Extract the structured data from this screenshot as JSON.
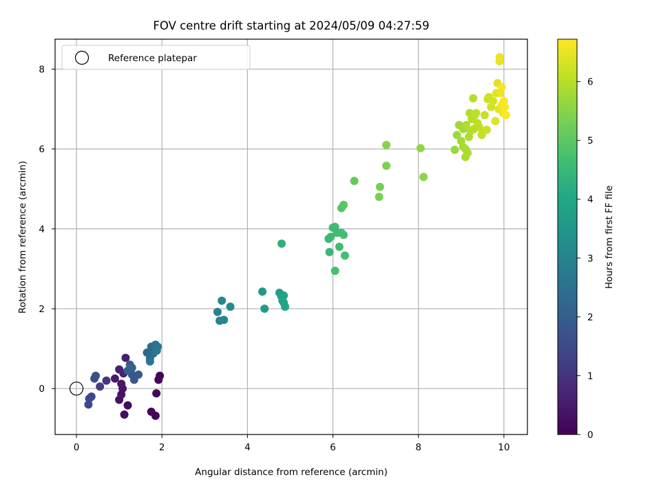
{
  "chart_data": {
    "type": "scatter",
    "title": "FOV centre drift starting at 2024/05/09 04:27:59",
    "xlabel": "Angular distance from reference (arcmin)",
    "ylabel": "Rotation from reference (arcmin)",
    "xlim": [
      -0.5,
      10.55
    ],
    "ylim": [
      -1.15,
      8.75
    ],
    "x_ticks": [
      0,
      2,
      4,
      6,
      8,
      10
    ],
    "x_tick_labels": [
      "0",
      "2",
      "4",
      "6",
      "8",
      "10"
    ],
    "y_ticks": [
      0,
      2,
      4,
      6,
      8
    ],
    "y_tick_labels": [
      "0",
      "2",
      "4",
      "6",
      "8"
    ],
    "grid": true,
    "legend": {
      "location": "upper-left",
      "entries": [
        "Reference platepar"
      ]
    },
    "colorbar": {
      "label": "Hours from first FF file",
      "colormap": "viridis",
      "range": [
        0,
        6.72
      ],
      "ticks": [
        0,
        1,
        2,
        3,
        4,
        5,
        6
      ],
      "tick_labels": [
        "0",
        "1",
        "2",
        "3",
        "4",
        "5",
        "6"
      ]
    },
    "reference": {
      "x": 0,
      "y": 0
    },
    "points": [
      {
        "x": 1.95,
        "y": 0.32,
        "h": 0.05
      },
      {
        "x": 1.92,
        "y": 0.22,
        "h": 0.08
      },
      {
        "x": 1.85,
        "y": -0.68,
        "h": 0.1
      },
      {
        "x": 1.75,
        "y": -0.58,
        "h": 0.12
      },
      {
        "x": 1.87,
        "y": -0.12,
        "h": 0.15
      },
      {
        "x": 1.2,
        "y": -0.42,
        "h": 0.2
      },
      {
        "x": 1.12,
        "y": -0.65,
        "h": 0.25
      },
      {
        "x": 1.0,
        "y": -0.28,
        "h": 0.3
      },
      {
        "x": 1.05,
        "y": -0.15,
        "h": 0.35
      },
      {
        "x": 1.08,
        "y": 0.0,
        "h": 0.4
      },
      {
        "x": 1.05,
        "y": 0.12,
        "h": 0.45
      },
      {
        "x": 0.9,
        "y": 0.25,
        "h": 0.5
      },
      {
        "x": 1.15,
        "y": 0.77,
        "h": 0.55
      },
      {
        "x": 1.0,
        "y": 0.48,
        "h": 0.6
      },
      {
        "x": 1.1,
        "y": 0.38,
        "h": 0.65
      },
      {
        "x": 0.7,
        "y": 0.2,
        "h": 1.0
      },
      {
        "x": 0.55,
        "y": 0.05,
        "h": 1.2
      },
      {
        "x": 0.35,
        "y": -0.2,
        "h": 1.4
      },
      {
        "x": 0.3,
        "y": -0.25,
        "h": 1.45
      },
      {
        "x": 0.28,
        "y": -0.4,
        "h": 1.5
      },
      {
        "x": 0.42,
        "y": 0.25,
        "h": 1.6
      },
      {
        "x": 0.45,
        "y": 0.32,
        "h": 1.65
      },
      {
        "x": 1.3,
        "y": 0.35,
        "h": 1.8
      },
      {
        "x": 1.35,
        "y": 0.22,
        "h": 1.85
      },
      {
        "x": 1.45,
        "y": 0.35,
        "h": 1.9
      },
      {
        "x": 1.2,
        "y": 0.45,
        "h": 2.0
      },
      {
        "x": 1.25,
        "y": 0.6,
        "h": 2.05
      },
      {
        "x": 1.3,
        "y": 0.52,
        "h": 2.1
      },
      {
        "x": 1.65,
        "y": 0.9,
        "h": 2.2
      },
      {
        "x": 1.72,
        "y": 0.75,
        "h": 2.3
      },
      {
        "x": 1.75,
        "y": 1.05,
        "h": 2.35
      },
      {
        "x": 1.8,
        "y": 0.88,
        "h": 2.4
      },
      {
        "x": 1.85,
        "y": 1.1,
        "h": 2.5
      },
      {
        "x": 1.9,
        "y": 1.05,
        "h": 2.55
      },
      {
        "x": 1.72,
        "y": 0.68,
        "h": 2.6
      },
      {
        "x": 1.88,
        "y": 0.95,
        "h": 2.7
      },
      {
        "x": 3.3,
        "y": 1.92,
        "h": 3.0
      },
      {
        "x": 3.35,
        "y": 1.7,
        "h": 3.05
      },
      {
        "x": 3.45,
        "y": 1.72,
        "h": 3.1
      },
      {
        "x": 3.4,
        "y": 2.2,
        "h": 3.15
      },
      {
        "x": 3.6,
        "y": 2.05,
        "h": 3.2
      },
      {
        "x": 4.35,
        "y": 2.43,
        "h": 3.6
      },
      {
        "x": 4.4,
        "y": 2.0,
        "h": 3.65
      },
      {
        "x": 4.75,
        "y": 2.4,
        "h": 3.75
      },
      {
        "x": 4.78,
        "y": 2.35,
        "h": 3.8
      },
      {
        "x": 4.8,
        "y": 2.3,
        "h": 3.85
      },
      {
        "x": 4.85,
        "y": 2.33,
        "h": 3.88
      },
      {
        "x": 4.82,
        "y": 2.2,
        "h": 3.9
      },
      {
        "x": 4.85,
        "y": 2.15,
        "h": 3.92
      },
      {
        "x": 4.88,
        "y": 2.05,
        "h": 3.95
      },
      {
        "x": 4.8,
        "y": 3.63,
        "h": 4.3
      },
      {
        "x": 5.9,
        "y": 3.75,
        "h": 4.45
      },
      {
        "x": 5.92,
        "y": 3.42,
        "h": 4.5
      },
      {
        "x": 5.95,
        "y": 3.8,
        "h": 4.52
      },
      {
        "x": 6.0,
        "y": 4.03,
        "h": 4.55
      },
      {
        "x": 6.05,
        "y": 4.05,
        "h": 4.58
      },
      {
        "x": 6.1,
        "y": 3.9,
        "h": 4.6
      },
      {
        "x": 6.15,
        "y": 3.55,
        "h": 4.62
      },
      {
        "x": 6.2,
        "y": 3.9,
        "h": 4.65
      },
      {
        "x": 6.25,
        "y": 3.85,
        "h": 4.68
      },
      {
        "x": 6.28,
        "y": 3.33,
        "h": 4.7
      },
      {
        "x": 6.05,
        "y": 2.95,
        "h": 4.72
      },
      {
        "x": 6.2,
        "y": 4.52,
        "h": 4.9
      },
      {
        "x": 6.25,
        "y": 4.6,
        "h": 4.95
      },
      {
        "x": 6.5,
        "y": 5.2,
        "h": 5.1
      },
      {
        "x": 7.1,
        "y": 5.05,
        "h": 5.3
      },
      {
        "x": 7.08,
        "y": 4.8,
        "h": 5.35
      },
      {
        "x": 7.25,
        "y": 5.58,
        "h": 5.4
      },
      {
        "x": 7.25,
        "y": 6.1,
        "h": 5.45
      },
      {
        "x": 8.05,
        "y": 6.02,
        "h": 5.6
      },
      {
        "x": 8.12,
        "y": 5.3,
        "h": 5.55
      },
      {
        "x": 8.85,
        "y": 5.98,
        "h": 5.7
      },
      {
        "x": 8.9,
        "y": 6.35,
        "h": 5.75
      },
      {
        "x": 8.95,
        "y": 6.6,
        "h": 5.78
      },
      {
        "x": 9.0,
        "y": 6.2,
        "h": 5.8
      },
      {
        "x": 9.05,
        "y": 6.5,
        "h": 5.82
      },
      {
        "x": 9.05,
        "y": 6.05,
        "h": 5.84
      },
      {
        "x": 9.1,
        "y": 5.8,
        "h": 5.85
      },
      {
        "x": 9.1,
        "y": 6.0,
        "h": 5.87
      },
      {
        "x": 9.15,
        "y": 5.9,
        "h": 5.88
      },
      {
        "x": 9.12,
        "y": 6.6,
        "h": 5.9
      },
      {
        "x": 9.18,
        "y": 6.3,
        "h": 5.92
      },
      {
        "x": 9.2,
        "y": 6.9,
        "h": 5.94
      },
      {
        "x": 9.22,
        "y": 6.45,
        "h": 5.95
      },
      {
        "x": 9.25,
        "y": 6.75,
        "h": 5.97
      },
      {
        "x": 9.28,
        "y": 7.27,
        "h": 5.98
      },
      {
        "x": 9.3,
        "y": 6.5,
        "h": 6.0
      },
      {
        "x": 9.32,
        "y": 6.85,
        "h": 6.02
      },
      {
        "x": 9.35,
        "y": 6.9,
        "h": 6.04
      },
      {
        "x": 9.38,
        "y": 6.65,
        "h": 6.05
      },
      {
        "x": 9.42,
        "y": 6.55,
        "h": 6.07
      },
      {
        "x": 9.48,
        "y": 6.35,
        "h": 6.1
      },
      {
        "x": 9.5,
        "y": 6.45,
        "h": 6.12
      },
      {
        "x": 9.55,
        "y": 6.85,
        "h": 6.15
      },
      {
        "x": 9.6,
        "y": 6.48,
        "h": 6.18
      },
      {
        "x": 9.62,
        "y": 7.25,
        "h": 6.2
      },
      {
        "x": 9.65,
        "y": 7.3,
        "h": 6.22
      },
      {
        "x": 9.7,
        "y": 7.05,
        "h": 6.25
      },
      {
        "x": 9.75,
        "y": 7.2,
        "h": 6.3
      },
      {
        "x": 9.8,
        "y": 6.7,
        "h": 6.35
      },
      {
        "x": 9.82,
        "y": 7.4,
        "h": 6.4
      },
      {
        "x": 9.85,
        "y": 7.65,
        "h": 6.42
      },
      {
        "x": 9.88,
        "y": 7.0,
        "h": 6.45
      },
      {
        "x": 9.9,
        "y": 8.2,
        "h": 6.5
      },
      {
        "x": 9.9,
        "y": 8.3,
        "h": 6.52
      },
      {
        "x": 9.92,
        "y": 7.4,
        "h": 6.55
      },
      {
        "x": 9.95,
        "y": 7.1,
        "h": 6.58
      },
      {
        "x": 9.95,
        "y": 7.55,
        "h": 6.6
      },
      {
        "x": 9.98,
        "y": 6.9,
        "h": 6.63
      },
      {
        "x": 10.0,
        "y": 7.2,
        "h": 6.65
      },
      {
        "x": 10.02,
        "y": 7.05,
        "h": 6.68
      },
      {
        "x": 10.05,
        "y": 6.85,
        "h": 6.7
      }
    ]
  }
}
